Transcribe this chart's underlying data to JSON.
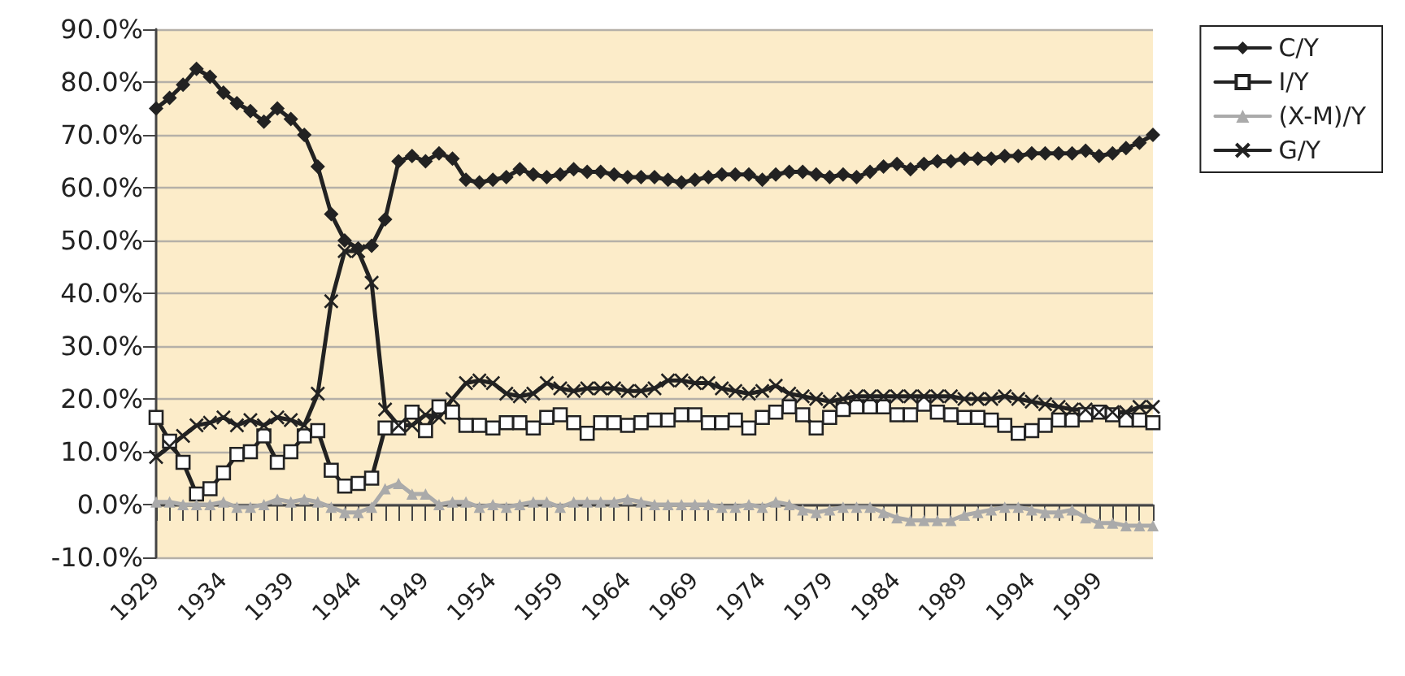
{
  "chart_data": {
    "type": "line",
    "categories": [
      "1929",
      null,
      null,
      null,
      null,
      "1934",
      null,
      null,
      null,
      null,
      "1939",
      null,
      null,
      null,
      null,
      "1944",
      null,
      null,
      null,
      null,
      "1949",
      null,
      null,
      null,
      null,
      "1954",
      null,
      null,
      null,
      null,
      "1959",
      null,
      null,
      null,
      null,
      "1964",
      null,
      null,
      null,
      null,
      "1969",
      null,
      null,
      null,
      null,
      "1974",
      null,
      null,
      null,
      null,
      "1979",
      null,
      null,
      null,
      null,
      "1984",
      null,
      null,
      null,
      null,
      "1989",
      null,
      null,
      null,
      null,
      "1994",
      null,
      null,
      null,
      null,
      "1999",
      null,
      null,
      null,
      null
    ],
    "series": [
      {
        "name": "C/Y",
        "color": "#222222",
        "marker": "diamond",
        "values": [
          75,
          77,
          79.5,
          82.5,
          81,
          78,
          76,
          74.5,
          72.5,
          75,
          73,
          70,
          64,
          55,
          50,
          48.5,
          49,
          54,
          65,
          66,
          65,
          66.5,
          65.5,
          61.5,
          61,
          61.5,
          62,
          63.5,
          62.5,
          62,
          62.5,
          63.5,
          63,
          63,
          62.5,
          62,
          62,
          62,
          61.5,
          61,
          61.5,
          62,
          62.5,
          62.5,
          62.5,
          61.5,
          62.5,
          63,
          63,
          62.5,
          62,
          62.5,
          62,
          63,
          64,
          64.5,
          63.5,
          64.5,
          65,
          65,
          65.5,
          65.5,
          65.5,
          66,
          66,
          66.5,
          66.5,
          66.5,
          66.5,
          67,
          66,
          66.5,
          67.5,
          68.5,
          70
        ]
      },
      {
        "name": "I/Y",
        "color": "#222222",
        "marker": "square",
        "values": [
          16.5,
          12,
          8,
          2,
          3,
          6,
          9.5,
          10,
          13,
          8,
          10,
          13,
          14,
          6.5,
          3.5,
          4,
          5,
          14.5,
          14.5,
          17.5,
          14,
          18.5,
          17.5,
          15,
          15,
          14.5,
          15.5,
          15.5,
          14.5,
          16.5,
          17,
          15.5,
          13.5,
          15.5,
          15.5,
          15,
          15.5,
          16,
          16,
          17,
          17,
          15.5,
          15.5,
          16,
          14.5,
          16.5,
          17.5,
          18.5,
          17,
          14.5,
          16.5,
          18,
          18.5,
          18.5,
          18.5,
          17,
          17,
          19,
          17.5,
          17,
          16.5,
          16.5,
          16,
          15,
          13.5,
          14,
          15,
          16,
          16,
          17,
          17.5,
          17,
          16,
          16,
          15.5
        ]
      },
      {
        "name": "(X-M)/Y",
        "color": "#aaaaaa",
        "marker": "triangle",
        "values": [
          0.5,
          0.5,
          0,
          0,
          0,
          0.5,
          -0.5,
          -0.5,
          0,
          1,
          0.5,
          1,
          0.5,
          -0.5,
          -1.5,
          -1.5,
          -0.5,
          3,
          4,
          2,
          2,
          0,
          0.5,
          0.5,
          -0.5,
          0,
          -0.5,
          0,
          0.5,
          0.5,
          -0.5,
          0.5,
          0.5,
          0.5,
          0.5,
          1,
          0.5,
          0,
          0,
          0,
          0,
          0,
          -0.5,
          -0.5,
          0,
          -0.5,
          0.5,
          0,
          -1,
          -1.5,
          -1,
          -0.5,
          -0.5,
          -0.5,
          -1.5,
          -2.5,
          -3,
          -3,
          -3,
          -3,
          -2,
          -1.5,
          -1,
          -0.5,
          -0.5,
          -1,
          -1.5,
          -1.5,
          -1,
          -2.5,
          -3.5,
          -3.5,
          -4,
          -4,
          -4
        ]
      },
      {
        "name": "G/Y",
        "color": "#222222",
        "marker": "cross",
        "values": [
          9,
          11,
          13,
          15,
          15.5,
          16.5,
          15,
          16,
          15,
          16.5,
          16,
          15,
          21,
          38.5,
          48,
          48,
          42,
          18,
          15,
          15,
          17,
          16.5,
          20,
          23,
          23.5,
          23,
          21,
          20.5,
          21,
          23,
          22,
          21.5,
          22,
          22,
          22,
          21.5,
          21.5,
          22,
          23.5,
          23.5,
          23,
          23,
          22,
          21.5,
          21,
          21.5,
          22.5,
          21,
          20.5,
          20,
          19.5,
          20,
          20.5,
          20.5,
          20.5,
          20.5,
          20.5,
          20.5,
          20.5,
          20.5,
          20,
          20,
          20,
          20.5,
          20,
          19.5,
          19,
          18.5,
          18,
          18,
          17.5,
          17.5,
          17.5,
          18.5,
          18.5
        ]
      }
    ],
    "ylim": [
      -10,
      90
    ],
    "yticks": [
      {
        "value": -10,
        "label": "-10.0%"
      },
      {
        "value": 0,
        "label": "0.0%"
      },
      {
        "value": 10,
        "label": "10.0%"
      },
      {
        "value": 20,
        "label": "20.0%"
      },
      {
        "value": 30,
        "label": "30.0%"
      },
      {
        "value": 40,
        "label": "40.0%"
      },
      {
        "value": 50,
        "label": "50.0%"
      },
      {
        "value": 60,
        "label": "60.0%"
      },
      {
        "value": 70,
        "label": "70.0%"
      },
      {
        "value": 80,
        "label": "80.0%"
      },
      {
        "value": 90,
        "label": "90.0%"
      }
    ],
    "grid": "y",
    "legend": "top right",
    "line_style": "solid"
  }
}
